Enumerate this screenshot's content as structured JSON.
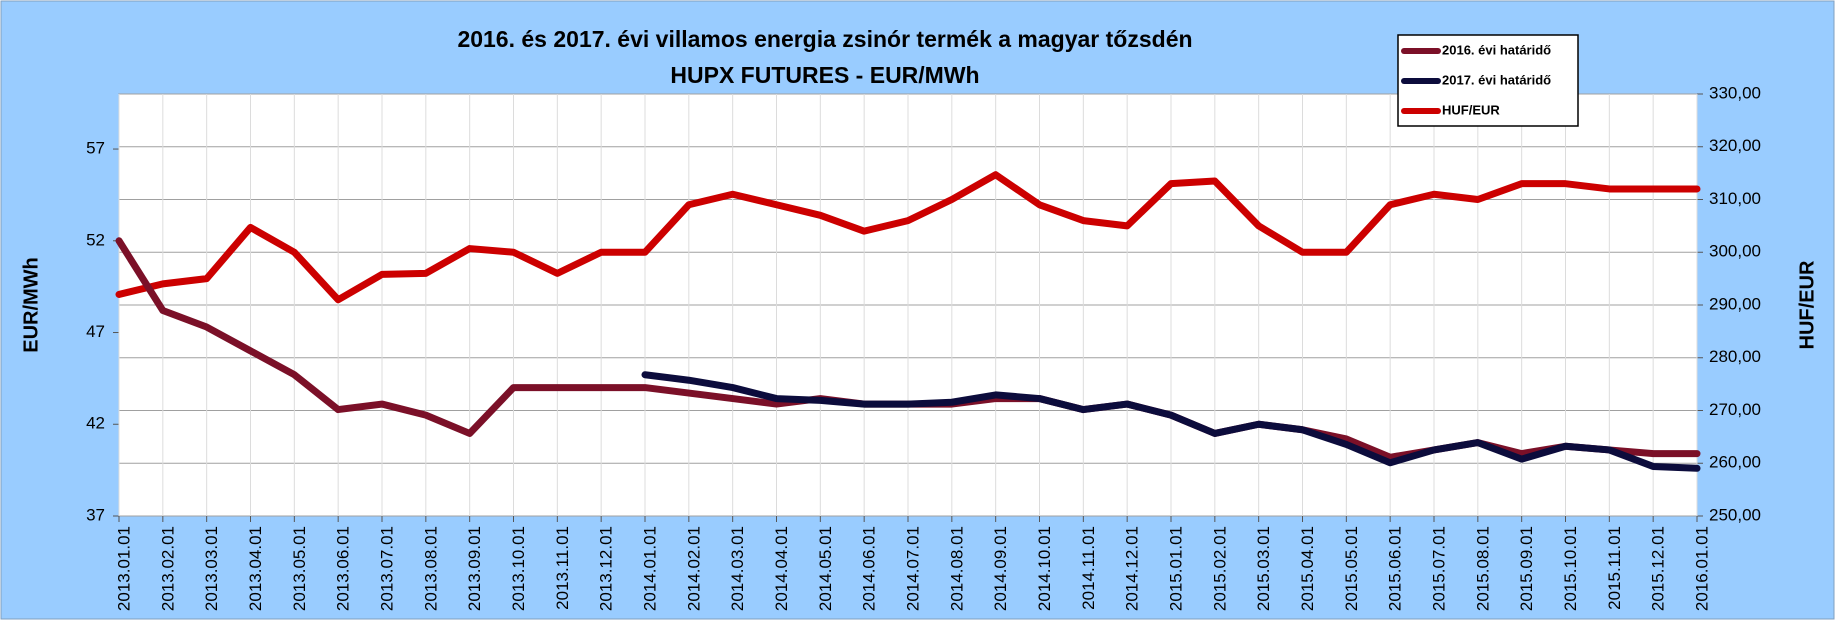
{
  "chart_data": {
    "type": "line",
    "title": "2016. és 2017. évi villamos energia zsinór termék a magyar tőzsdén",
    "subtitle": "HUPX FUTURES - EUR/MWh",
    "y_label": "EUR/MWh",
    "y2_label": "HUF/EUR",
    "categories": [
      "2013.01.01",
      "2013.02.01",
      "2013.03.01",
      "2013.04.01",
      "2013.05.01",
      "2013.06.01",
      "2013.07.01",
      "2013.08.01",
      "2013.09.01",
      "2013.10.01",
      "2013.11.01",
      "2013.12.01",
      "2014.01.01",
      "2014.02.01",
      "2014.03.01",
      "2014.04.01",
      "2014.05.01",
      "2014.06.01",
      "2014.07.01",
      "2014.08.01",
      "2014.09.01",
      "2014.10.01",
      "2014.11.01",
      "2014.12.01",
      "2015.01.01",
      "2015.02.01",
      "2015.03.01",
      "2015.04.01",
      "2015.05.01",
      "2015.06.01",
      "2015.07.01",
      "2015.08.01",
      "2015.09.01",
      "2015.10.01",
      "2015.11.01",
      "2015.12.01",
      "2016.01.01"
    ],
    "series": [
      {
        "name": "2016. évi határidő",
        "color": "#7b1028",
        "axis": "y",
        "values": [
          52,
          48.2,
          47.3,
          46,
          44.7,
          42.8,
          43.1,
          42.5,
          41.5,
          44,
          44,
          44,
          44,
          43.7,
          43.4,
          43.1,
          43.4,
          43.1,
          43.1,
          43.1,
          43.4,
          43.4,
          42.8,
          43.1,
          42.5,
          41.5,
          42,
          41.7,
          41.2,
          40.2,
          40.6,
          41,
          40.4,
          40.8,
          40.6,
          40.4,
          40.4
        ]
      },
      {
        "name": "2017. évi határidő",
        "color": "#0c0c3c",
        "axis": "y",
        "values": [
          null,
          null,
          null,
          null,
          null,
          null,
          null,
          null,
          null,
          null,
          null,
          null,
          44.7,
          44.4,
          44,
          43.4,
          43.3,
          43.1,
          43.1,
          43.2,
          43.6,
          43.4,
          42.8,
          43.1,
          42.5,
          41.5,
          42,
          41.7,
          40.9,
          39.9,
          40.6,
          41,
          40.1,
          40.8,
          40.6,
          39.7,
          39.6
        ]
      },
      {
        "name": "HUF/EUR",
        "color": "#cc0000",
        "axis": "y2",
        "values": [
          292,
          294,
          295,
          304.7,
          300,
          291,
          295.8,
          296,
          300.7,
          300,
          296,
          300,
          300,
          309,
          311,
          309,
          307,
          304,
          306,
          310,
          314.7,
          309,
          306,
          305,
          313,
          313.5,
          305,
          300,
          300,
          309,
          311,
          310,
          313,
          313,
          312,
          312,
          312
        ]
      }
    ],
    "ylim": [
      37,
      60
    ],
    "yticks": [
      37,
      42,
      47,
      52,
      57
    ],
    "y2lim": [
      250,
      330
    ],
    "y2ticks": [
      {
        "value": 250,
        "label": "250,00"
      },
      {
        "value": 260,
        "label": "260,00"
      },
      {
        "value": 270,
        "label": "270,00"
      },
      {
        "value": 280,
        "label": "280,00"
      },
      {
        "value": 290,
        "label": "290,00"
      },
      {
        "value": 300,
        "label": "300,00"
      },
      {
        "value": 310,
        "label": "310,00"
      },
      {
        "value": 320,
        "label": "320,00"
      },
      {
        "value": 330,
        "label": "330,00"
      }
    ],
    "grid": true,
    "legend": "upper right"
  }
}
